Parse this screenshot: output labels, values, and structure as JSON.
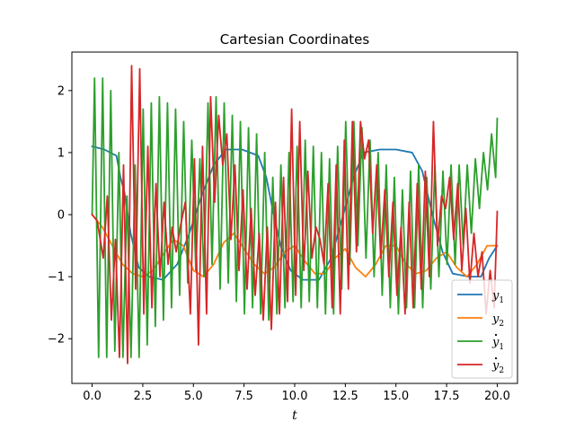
{
  "chart_data": {
    "type": "line",
    "title": "Cartesian Coordinates",
    "xlabel": "t",
    "ylabel": "",
    "xlim": [
      -1.0,
      21.0
    ],
    "ylim": [
      -2.72,
      2.62
    ],
    "xticks": [
      0.0,
      2.5,
      5.0,
      7.5,
      10.0,
      12.5,
      15.0,
      17.5,
      20.0
    ],
    "xtick_labels": [
      "0.0",
      "2.5",
      "5.0",
      "7.5",
      "10.0",
      "12.5",
      "15.0",
      "17.5",
      "20.0"
    ],
    "yticks": [
      -2,
      -1,
      0,
      1,
      2
    ],
    "ytick_labels": [
      "−2",
      "−1",
      "0",
      "1",
      "2"
    ],
    "grid": false,
    "legend_position": "lower-right",
    "t_range": [
      0,
      20
    ],
    "series": [
      {
        "name": "y1",
        "label": "y",
        "sub": "1",
        "dot": false,
        "color": "#1f77b4",
        "values": [
          [
            0,
            1.1
          ],
          [
            0.6,
            1.05
          ],
          [
            1.2,
            0.95
          ],
          [
            1.4,
            0.6
          ],
          [
            1.6,
            0.35
          ],
          [
            1.9,
            -0.3
          ],
          [
            2.3,
            -0.85
          ],
          [
            2.8,
            -1.0
          ],
          [
            3.5,
            -1.05
          ],
          [
            4.2,
            -0.8
          ],
          [
            4.8,
            -0.3
          ],
          [
            5.4,
            0.3
          ],
          [
            6.0,
            0.8
          ],
          [
            6.6,
            1.05
          ],
          [
            7.4,
            1.05
          ],
          [
            8.2,
            0.95
          ],
          [
            8.6,
            0.6
          ],
          [
            8.9,
            0.1
          ],
          [
            9.3,
            -0.5
          ],
          [
            9.8,
            -0.9
          ],
          [
            10.4,
            -1.05
          ],
          [
            11.2,
            -1.05
          ],
          [
            11.8,
            -0.7
          ],
          [
            12.4,
            0.0
          ],
          [
            12.9,
            0.6
          ],
          [
            13.4,
            1.0
          ],
          [
            14.2,
            1.05
          ],
          [
            15.0,
            1.05
          ],
          [
            15.8,
            1.0
          ],
          [
            16.3,
            0.7
          ],
          [
            16.8,
            0.0
          ],
          [
            17.3,
            -0.6
          ],
          [
            17.8,
            -0.95
          ],
          [
            18.6,
            -1.0
          ],
          [
            19.2,
            -1.0
          ],
          [
            19.6,
            -0.7
          ],
          [
            20.0,
            -0.5
          ]
        ]
      },
      {
        "name": "y2",
        "label": "y",
        "sub": "2",
        "dot": false,
        "color": "#ff7f0e",
        "values": [
          [
            0,
            0.0
          ],
          [
            0.5,
            -0.2
          ],
          [
            1.0,
            -0.5
          ],
          [
            1.5,
            -0.8
          ],
          [
            2.0,
            -0.95
          ],
          [
            2.5,
            -1.0
          ],
          [
            3.0,
            -0.9
          ],
          [
            3.5,
            -0.65
          ],
          [
            4.0,
            -0.4
          ],
          [
            4.5,
            -0.5
          ],
          [
            5.0,
            -0.9
          ],
          [
            5.5,
            -1.0
          ],
          [
            6.0,
            -0.8
          ],
          [
            6.5,
            -0.45
          ],
          [
            7.0,
            -0.3
          ],
          [
            7.5,
            -0.55
          ],
          [
            8.0,
            -0.8
          ],
          [
            8.5,
            -0.95
          ],
          [
            9.0,
            -0.85
          ],
          [
            9.5,
            -0.6
          ],
          [
            10.0,
            -0.5
          ],
          [
            10.5,
            -0.75
          ],
          [
            11.0,
            -0.95
          ],
          [
            11.5,
            -0.95
          ],
          [
            12.0,
            -0.7
          ],
          [
            12.5,
            -0.55
          ],
          [
            13.0,
            -0.85
          ],
          [
            13.5,
            -1.0
          ],
          [
            14.0,
            -0.8
          ],
          [
            14.5,
            -0.5
          ],
          [
            15.0,
            -0.5
          ],
          [
            15.5,
            -0.8
          ],
          [
            16.0,
            -0.95
          ],
          [
            16.5,
            -0.9
          ],
          [
            17.0,
            -0.7
          ],
          [
            17.5,
            -0.6
          ],
          [
            18.0,
            -0.85
          ],
          [
            18.5,
            -1.0
          ],
          [
            19.0,
            -0.8
          ],
          [
            19.5,
            -0.5
          ],
          [
            20.0,
            -0.5
          ]
        ]
      },
      {
        "name": "y1-dot",
        "label": "y",
        "sub": "1",
        "dot": true,
        "color": "#2ca02c",
        "values": [
          [
            0,
            0.0
          ],
          [
            0.12,
            2.2
          ],
          [
            0.32,
            -2.3
          ],
          [
            0.52,
            2.2
          ],
          [
            0.72,
            -2.3
          ],
          [
            0.92,
            2.0
          ],
          [
            1.12,
            -2.2
          ],
          [
            1.32,
            1.0
          ],
          [
            1.52,
            -2.3
          ],
          [
            1.72,
            0.3
          ],
          [
            1.92,
            -2.3
          ],
          [
            2.12,
            0.8
          ],
          [
            2.32,
            -2.3
          ],
          [
            2.52,
            1.7
          ],
          [
            2.72,
            -2.1
          ],
          [
            2.92,
            1.8
          ],
          [
            3.12,
            -1.8
          ],
          [
            3.32,
            1.9
          ],
          [
            3.52,
            -1.7
          ],
          [
            3.72,
            1.8
          ],
          [
            3.92,
            -1.5
          ],
          [
            4.12,
            1.7
          ],
          [
            4.32,
            -1.3
          ],
          [
            4.52,
            1.5
          ],
          [
            4.72,
            -1.1
          ],
          [
            4.92,
            1.2
          ],
          [
            5.12,
            -0.9
          ],
          [
            5.32,
            0.9
          ],
          [
            5.52,
            -1.0
          ],
          [
            5.72,
            1.8
          ],
          [
            5.92,
            -0.8
          ],
          [
            6.12,
            1.9
          ],
          [
            6.32,
            -1.2
          ],
          [
            6.52,
            1.8
          ],
          [
            6.72,
            -1.1
          ],
          [
            6.92,
            1.6
          ],
          [
            7.12,
            -1.4
          ],
          [
            7.32,
            1.5
          ],
          [
            7.52,
            -1.6
          ],
          [
            7.72,
            1.4
          ],
          [
            7.92,
            -1.5
          ],
          [
            8.12,
            1.3
          ],
          [
            8.32,
            -1.6
          ],
          [
            8.52,
            1.0
          ],
          [
            8.72,
            -1.7
          ],
          [
            8.92,
            0.6
          ],
          [
            9.12,
            -1.6
          ],
          [
            9.32,
            0.8
          ],
          [
            9.52,
            -1.5
          ],
          [
            9.72,
            1.0
          ],
          [
            9.92,
            -1.4
          ],
          [
            10.12,
            1.1
          ],
          [
            10.32,
            -1.5
          ],
          [
            10.52,
            1.2
          ],
          [
            10.72,
            -1.4
          ],
          [
            10.92,
            1.1
          ],
          [
            11.12,
            -1.5
          ],
          [
            11.32,
            1.0
          ],
          [
            11.52,
            -1.6
          ],
          [
            11.72,
            0.9
          ],
          [
            11.92,
            -1.6
          ],
          [
            12.12,
            1.1
          ],
          [
            12.32,
            -1.2
          ],
          [
            12.52,
            1.5
          ],
          [
            12.72,
            -0.8
          ],
          [
            12.92,
            1.5
          ],
          [
            13.12,
            -0.5
          ],
          [
            13.32,
            1.4
          ],
          [
            13.52,
            -0.7
          ],
          [
            13.72,
            1.2
          ],
          [
            13.92,
            -1.0
          ],
          [
            14.12,
            1.0
          ],
          [
            14.32,
            -1.3
          ],
          [
            14.52,
            0.8
          ],
          [
            14.72,
            -1.5
          ],
          [
            14.92,
            0.6
          ],
          [
            15.12,
            -1.6
          ],
          [
            15.32,
            0.4
          ],
          [
            15.52,
            -1.5
          ],
          [
            15.72,
            0.7
          ],
          [
            15.92,
            -1.5
          ],
          [
            16.12,
            0.8
          ],
          [
            16.32,
            -1.5
          ],
          [
            16.52,
            0.6
          ],
          [
            16.72,
            -1.2
          ],
          [
            16.92,
            0.8
          ],
          [
            17.12,
            -1.0
          ],
          [
            17.32,
            0.7
          ],
          [
            17.52,
            -0.8
          ],
          [
            17.72,
            0.8
          ],
          [
            17.92,
            -0.8
          ],
          [
            18.12,
            0.8
          ],
          [
            18.32,
            -0.5
          ],
          [
            18.52,
            0.8
          ],
          [
            18.72,
            -0.3
          ],
          [
            18.92,
            0.9
          ],
          [
            19.12,
            0.1
          ],
          [
            19.32,
            1.0
          ],
          [
            19.52,
            0.4
          ],
          [
            19.72,
            1.3
          ],
          [
            19.92,
            0.6
          ],
          [
            20.0,
            1.55
          ]
        ]
      },
      {
        "name": "y2-dot",
        "label": "y",
        "sub": "2",
        "dot": true,
        "color": "#d62728",
        "values": [
          [
            0,
            0.0
          ],
          [
            0.25,
            -0.1
          ],
          [
            0.55,
            -0.7
          ],
          [
            0.75,
            0.3
          ],
          [
            0.95,
            -1.7
          ],
          [
            1.15,
            -0.4
          ],
          [
            1.35,
            -2.3
          ],
          [
            1.55,
            0.8
          ],
          [
            1.75,
            -2.4
          ],
          [
            1.95,
            2.4
          ],
          [
            2.15,
            -1.2
          ],
          [
            2.35,
            2.35
          ],
          [
            2.55,
            -1.6
          ],
          [
            2.75,
            1.1
          ],
          [
            2.95,
            -1.5
          ],
          [
            3.15,
            0.5
          ],
          [
            3.35,
            -1.0
          ],
          [
            3.55,
            0.2
          ],
          [
            3.75,
            -0.8
          ],
          [
            3.95,
            -0.2
          ],
          [
            4.15,
            -0.6
          ],
          [
            4.35,
            -0.2
          ],
          [
            4.6,
            0.2
          ],
          [
            4.85,
            -1.6
          ],
          [
            5.05,
            0.9
          ],
          [
            5.25,
            -2.1
          ],
          [
            5.45,
            1.1
          ],
          [
            5.65,
            -1.6
          ],
          [
            5.85,
            1.9
          ],
          [
            6.05,
            0.2
          ],
          [
            6.25,
            1.6
          ],
          [
            6.45,
            0.8
          ],
          [
            6.65,
            1.3
          ],
          [
            6.85,
            -0.4
          ],
          [
            7.05,
            0.8
          ],
          [
            7.25,
            -0.9
          ],
          [
            7.45,
            0.4
          ],
          [
            7.65,
            -1.2
          ],
          [
            7.85,
            0.1
          ],
          [
            8.05,
            -1.3
          ],
          [
            8.25,
            -0.3
          ],
          [
            8.45,
            -1.7
          ],
          [
            8.65,
            -0.2
          ],
          [
            8.85,
            -1.85
          ],
          [
            9.05,
            0.2
          ],
          [
            9.25,
            -1.6
          ],
          [
            9.45,
            0.6
          ],
          [
            9.65,
            -1.4
          ],
          [
            9.85,
            1.7
          ],
          [
            10.05,
            -1.3
          ],
          [
            10.25,
            1.5
          ],
          [
            10.45,
            -0.9
          ],
          [
            10.65,
            0.7
          ],
          [
            10.85,
            -0.7
          ],
          [
            11.05,
            -0.2
          ],
          [
            11.25,
            -0.4
          ],
          [
            11.45,
            -0.8
          ],
          [
            11.65,
            0.5
          ],
          [
            11.85,
            -1.5
          ],
          [
            12.05,
            0.8
          ],
          [
            12.25,
            -1.6
          ],
          [
            12.45,
            1.2
          ],
          [
            12.65,
            -1.2
          ],
          [
            12.85,
            1.5
          ],
          [
            13.05,
            -0.6
          ],
          [
            13.25,
            1.5
          ],
          [
            13.45,
            0.9
          ],
          [
            13.65,
            1.2
          ],
          [
            13.85,
            -0.3
          ],
          [
            14.05,
            0.8
          ],
          [
            14.25,
            -0.7
          ],
          [
            14.45,
            0.4
          ],
          [
            14.65,
            -1.0
          ],
          [
            14.85,
            0.2
          ],
          [
            15.05,
            -1.3
          ],
          [
            15.25,
            -0.2
          ],
          [
            15.45,
            -1.6
          ],
          [
            15.65,
            0.2
          ],
          [
            15.85,
            -1.5
          ],
          [
            16.05,
            0.5
          ],
          [
            16.25,
            -1.2
          ],
          [
            16.45,
            0.7
          ],
          [
            16.65,
            -1.0
          ],
          [
            16.85,
            1.5
          ],
          [
            17.05,
            -0.5
          ],
          [
            17.25,
            0.3
          ],
          [
            17.45,
            0.1
          ],
          [
            17.65,
            0.6
          ],
          [
            17.85,
            -0.4
          ],
          [
            18.05,
            0.5
          ],
          [
            18.25,
            -0.9
          ],
          [
            18.45,
            0.1
          ],
          [
            18.65,
            -1.1
          ],
          [
            18.85,
            -0.3
          ],
          [
            19.05,
            -1.0
          ],
          [
            19.25,
            -0.6
          ],
          [
            19.45,
            -1.6
          ],
          [
            19.65,
            -0.9
          ],
          [
            19.85,
            -1.5
          ],
          [
            20.0,
            0.05
          ]
        ]
      }
    ]
  }
}
